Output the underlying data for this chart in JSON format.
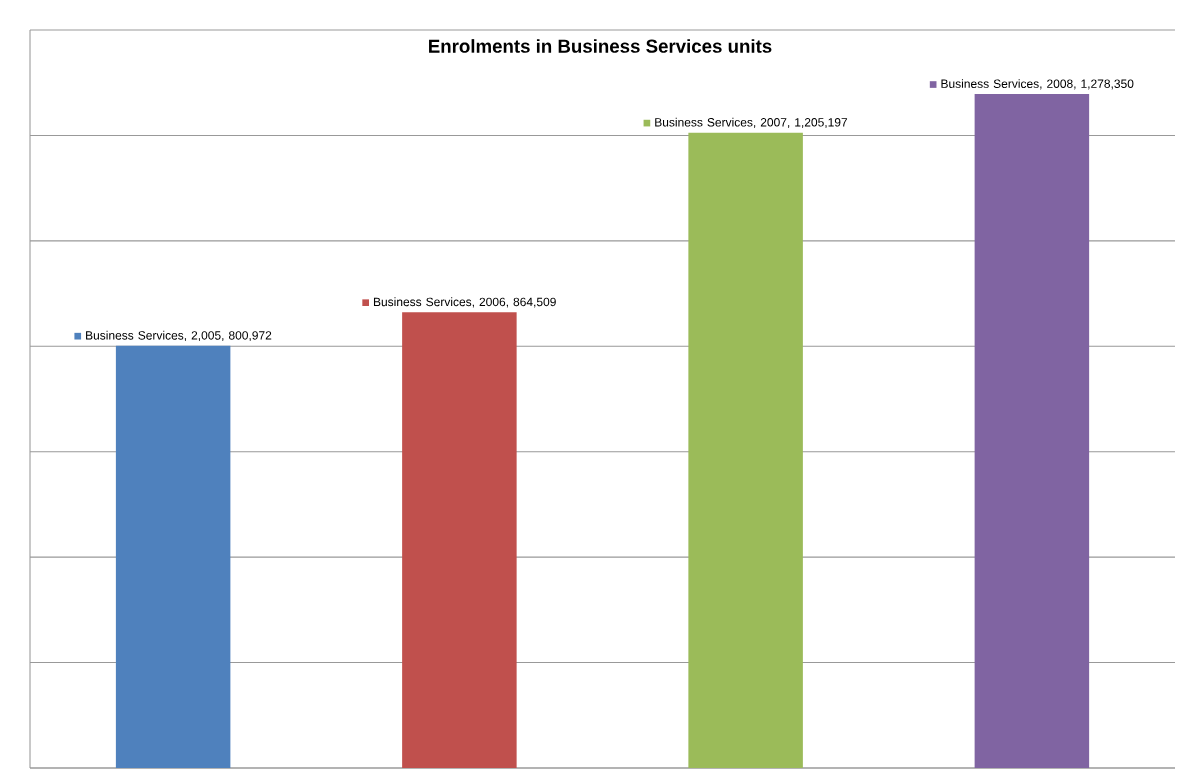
{
  "chart_data": {
    "type": "bar",
    "title": "Enrolments in Business Services units",
    "categories": [
      null,
      null,
      null,
      null
    ],
    "values": [
      800972,
      864509,
      1205197,
      1278350
    ],
    "colors": [
      "#4f81bd",
      "#c0504d",
      "#9bbb59",
      "#8064a2"
    ],
    "value_labels": [
      "Business Services, 2,005, 800,972",
      "Business Services, 2006, 864,509",
      "Business Services, 2007, 1,205,197",
      "Business Services, 2008, 1,278,350"
    ],
    "ylim": [
      0,
      1400000
    ],
    "yticks": [
      {
        "value": 0,
        "label": null
      },
      {
        "value": 200000,
        "label": null
      },
      {
        "value": 400000,
        "label": null
      },
      {
        "value": 600000,
        "label": null
      },
      {
        "value": 800000,
        "label": null
      },
      {
        "value": 1000000,
        "label": null
      },
      {
        "value": 1200000,
        "label": null
      },
      {
        "value": 1400000,
        "label": null
      }
    ],
    "grid": "y"
  }
}
